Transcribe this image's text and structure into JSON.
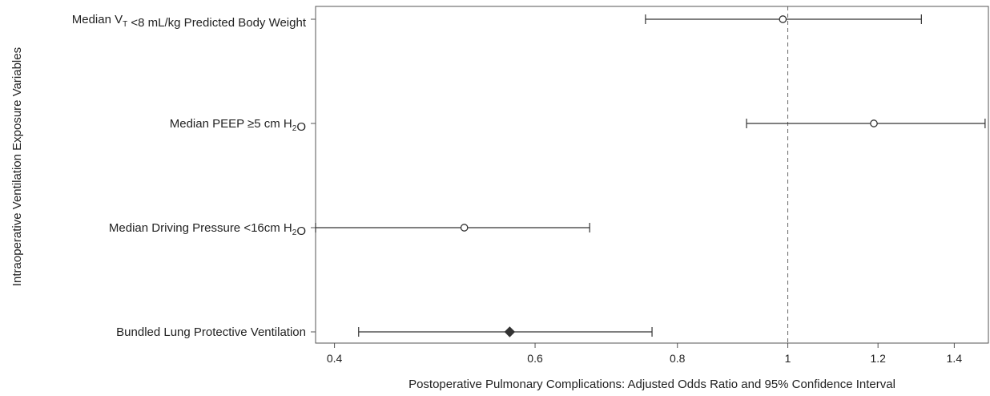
{
  "chart_data": {
    "type": "forest",
    "xlabel": "Postoperative Pulmonary Complications: Adjusted Odds Ratio and 95% Confidence Interval",
    "ylabel": "Intraoperative Ventilation Exposure Variables",
    "x_scale": "log",
    "xlim": [
      0.385,
      1.5
    ],
    "x_ticks": [
      0.4,
      0.6,
      0.8,
      1,
      1.2,
      1.4
    ],
    "x_tick_labels": [
      "0.4",
      "0.6",
      "0.8",
      "1",
      "1.2",
      "1.4"
    ],
    "reference_line": 1,
    "rows": [
      {
        "label_parts": [
          {
            "text": "Median V"
          },
          {
            "text": "T",
            "sub": true
          },
          {
            "text": " <8 mL/kg Predicted Body Weight"
          }
        ],
        "estimate": 0.99,
        "lower": 0.75,
        "upper": 1.31,
        "marker": "circle"
      },
      {
        "label_parts": [
          {
            "text": "Median PEEP ≥5 cm H"
          },
          {
            "text": "2",
            "sub": true
          },
          {
            "text": "O"
          }
        ],
        "estimate": 1.19,
        "lower": 0.92,
        "upper": 1.49,
        "marker": "circle"
      },
      {
        "label_parts": [
          {
            "text": "Median Driving Pressure <16cm H"
          },
          {
            "text": "2",
            "sub": true
          },
          {
            "text": "O"
          }
        ],
        "estimate": 0.52,
        "lower": 0.385,
        "upper": 0.67,
        "marker": "circle"
      },
      {
        "label_parts": [
          {
            "text": "Bundled Lung Protective Ventilation"
          }
        ],
        "estimate": 0.57,
        "lower": 0.42,
        "upper": 0.76,
        "marker": "diamond"
      }
    ],
    "colors": {
      "marker": "#333333",
      "lines": "#333333",
      "frame": "#555555",
      "reference": "#666666"
    }
  }
}
